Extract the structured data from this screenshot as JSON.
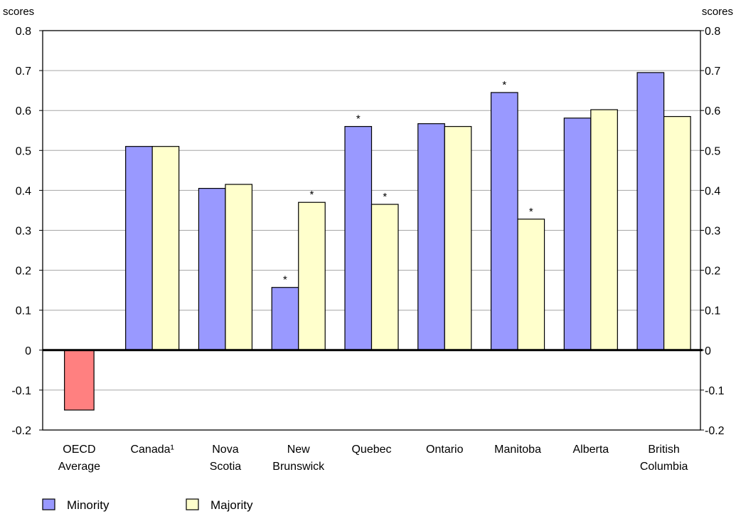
{
  "chart_data": {
    "type": "bar",
    "left_unit_label": "scores",
    "right_unit_label": "scores",
    "ylim": [
      -0.2,
      0.8
    ],
    "yticks": [
      "0.8",
      "0.7",
      "0.6",
      "0.5",
      "0.4",
      "0.3",
      "0.2",
      "0.1",
      "0",
      "-0.1",
      "-0.2"
    ],
    "ytick_values": [
      0.8,
      0.7,
      0.6,
      0.5,
      0.4,
      0.3,
      0.2,
      0.1,
      0,
      -0.1,
      -0.2
    ],
    "grid": true,
    "categories": [
      {
        "lines": [
          "OECD",
          "Average"
        ]
      },
      {
        "lines": [
          "Canada¹"
        ]
      },
      {
        "lines": [
          "Nova",
          "Scotia"
        ]
      },
      {
        "lines": [
          "New",
          "Brunswick"
        ]
      },
      {
        "lines": [
          "Quebec"
        ]
      },
      {
        "lines": [
          "Ontario"
        ]
      },
      {
        "lines": [
          "Manitoba"
        ]
      },
      {
        "lines": [
          "Alberta"
        ]
      },
      {
        "lines": [
          "British",
          "Columbia"
        ]
      }
    ],
    "oecd_average": {
      "value": -0.15,
      "color": "#ff8080"
    },
    "series": [
      {
        "name": "Minority",
        "color": "#9999ff",
        "values": [
          null,
          0.51,
          0.405,
          0.157,
          0.56,
          0.567,
          0.645,
          0.581,
          0.695
        ],
        "significant": [
          false,
          false,
          false,
          true,
          true,
          false,
          true,
          false,
          false
        ]
      },
      {
        "name": "Majority",
        "color": "#ffffcc",
        "values": [
          null,
          0.51,
          0.415,
          0.37,
          0.365,
          0.56,
          0.328,
          0.602,
          0.585
        ],
        "significant": [
          false,
          false,
          false,
          true,
          true,
          false,
          true,
          false,
          false
        ]
      }
    ],
    "significance_marker": "*",
    "legend_position": "bottom-left"
  }
}
